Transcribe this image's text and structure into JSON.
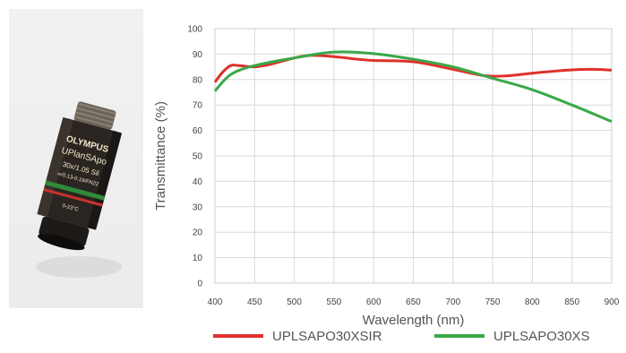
{
  "photo": {
    "brand": "OLYMPUS",
    "model": "UPlanSApo",
    "spec_line1": "30x/1.05 Sil",
    "spec_line2": "∞/0.13-0.19/FN22",
    "ring_text": "0-23°C",
    "colors": {
      "body": "#2a2520",
      "ring_green": "#2e8b3a",
      "ring_red": "#c8322c"
    }
  },
  "chart_data": {
    "type": "line",
    "title": "",
    "xlabel": "Wavelength (nm)",
    "ylabel": "Transmittance (%)",
    "xlim": [
      400,
      900
    ],
    "ylim": [
      0,
      100
    ],
    "xticks": [
      400,
      450,
      500,
      550,
      600,
      650,
      700,
      750,
      800,
      850,
      900
    ],
    "yticks": [
      0,
      10,
      20,
      30,
      40,
      50,
      60,
      70,
      80,
      90,
      100
    ],
    "grid": true,
    "legend_position": "bottom",
    "series": [
      {
        "name": "UPLSAPO30XSIR",
        "color": "#e0302a",
        "x": [
          400,
          410,
          420,
          430,
          450,
          470,
          500,
          520,
          550,
          580,
          600,
          650,
          700,
          740,
          770,
          800,
          850,
          880,
          900
        ],
        "y": [
          79,
          83,
          85.5,
          85.5,
          85,
          86,
          88.5,
          89.5,
          89,
          88,
          87.5,
          87,
          84,
          81.5,
          81.5,
          82.5,
          83.8,
          84,
          83.7
        ]
      },
      {
        "name": "UPLSAPO30XS",
        "color": "#3aa848",
        "x": [
          400,
          420,
          450,
          500,
          550,
          600,
          650,
          700,
          750,
          800,
          850,
          900
        ],
        "y": [
          75.5,
          82,
          85.5,
          88.5,
          90.8,
          90.2,
          88,
          85,
          80.5,
          76,
          70,
          63.5
        ]
      }
    ]
  }
}
